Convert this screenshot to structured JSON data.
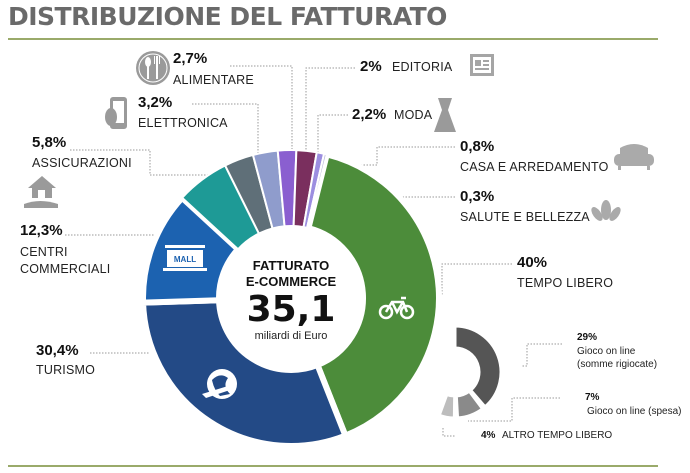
{
  "chart_data": {
    "type": "pie",
    "title": "DISTRIBUZIONE DEL FATTURATO",
    "center": {
      "line1": "FATTURATO",
      "line2": "E-COMMERCE",
      "value": "35,1",
      "unit": "miliardi di Euro"
    },
    "slices": [
      {
        "label": "TEMPO LIBERO",
        "value": 40,
        "value_label": "40%",
        "color": "#4c8c3a",
        "icon": "bicycle-icon"
      },
      {
        "label": "TURISMO",
        "value": 30.4,
        "value_label": "30,4%",
        "color": "#234a86",
        "icon": "globe-plane-icon"
      },
      {
        "label": "CENTRI COMMERCIALI",
        "label_lines": [
          "CENTRI",
          "COMMERCIALI"
        ],
        "value": 12.3,
        "value_label": "12,3%",
        "color": "#1c62b0",
        "icon": "mall-icon"
      },
      {
        "label": "ASSICURAZIONI",
        "value": 5.8,
        "value_label": "5,8%",
        "color": "#1e9a96",
        "icon": "house-hand-icon"
      },
      {
        "label": "ELETTRONICA",
        "value": 3.2,
        "value_label": "3,2%",
        "color": "#5f6f78",
        "icon": "smartphone-icon"
      },
      {
        "label": "ALIMENTARE",
        "value": 2.7,
        "value_label": "2,7%",
        "color": "#8f9ccc",
        "icon": "cutlery-icon"
      },
      {
        "label": "EDITORIA",
        "value": 2,
        "value_label": "2%",
        "color": "#8a5fd0",
        "icon": "newspaper-icon"
      },
      {
        "label": "MODA",
        "value": 2.2,
        "value_label": "2,2%",
        "color": "#7a2f5e",
        "icon": "dress-icon"
      },
      {
        "label": "CASA E ARREDAMENTO",
        "value": 0.8,
        "value_label": "0,8%",
        "color": "#9c8ee0",
        "icon": "armchair-icon"
      },
      {
        "label": "SALUTE E BELLEZZA",
        "value": 0.3,
        "value_label": "0,3%",
        "color": "#b8b8d8",
        "icon": "lotus-icon"
      }
    ],
    "sub_chart": {
      "parent": "TEMPO LIBERO",
      "slices": [
        {
          "label": "Gioco on line (somme rigiocate)",
          "label_lines": [
            "Gioco on line",
            "(somme rigiocate)"
          ],
          "value": 29,
          "value_label": "29%",
          "color": "#555555"
        },
        {
          "label": "Gioco on line (spesa)",
          "value": 7,
          "value_label": "7%",
          "color": "#8a8a8a"
        },
        {
          "label": "ALTRO TEMPO LIBERO",
          "value": 4,
          "value_label": "4%",
          "color": "#bdbdbd"
        }
      ]
    }
  }
}
